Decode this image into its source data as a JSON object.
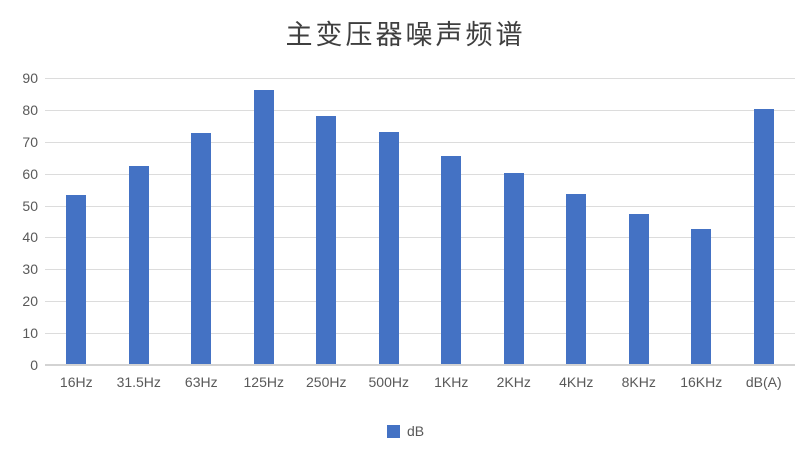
{
  "title": "主变压器噪声频谱",
  "chart_data": {
    "type": "bar",
    "title": "主变压器噪声频谱",
    "categories": [
      "16Hz",
      "31.5Hz",
      "63Hz",
      "125Hz",
      "250Hz",
      "500Hz",
      "1KHz",
      "2KHz",
      "4KHz",
      "8KHz",
      "16KHz",
      "dB(A)"
    ],
    "series": [
      {
        "name": "dB",
        "values": [
          53.3,
          62.5,
          72.8,
          86.3,
          78.2,
          73.0,
          65.4,
          60.3,
          53.6,
          47.3,
          42.5,
          80.2
        ]
      }
    ],
    "xlabel": "",
    "ylabel": "",
    "ylim": [
      0,
      90
    ],
    "yticks": [
      0,
      10,
      20,
      30,
      40,
      50,
      60,
      70,
      80,
      90
    ],
    "grid": true,
    "legend_position": "bottom"
  },
  "colors": {
    "bar": "#4472C4",
    "gridline": "#dcdcdc",
    "axis_line": "#d3d3d3",
    "tick_label": "#595959",
    "title": "#3f3f3f"
  },
  "legend": {
    "label": "dB"
  }
}
